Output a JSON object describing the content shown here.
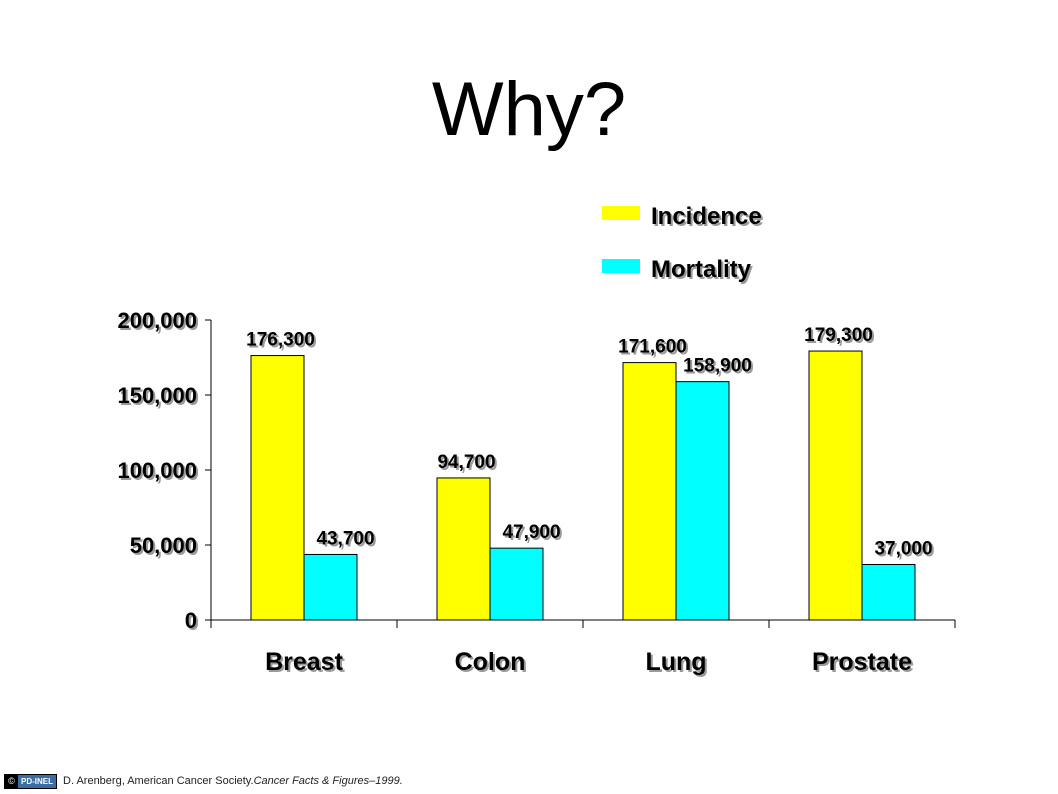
{
  "title": "Why?",
  "chart_data": {
    "type": "bar",
    "categories": [
      "Breast",
      "Colon",
      "Lung",
      "Prostate"
    ],
    "series": [
      {
        "name": "Incidence",
        "values": [
          176300,
          94700,
          171600,
          179300
        ],
        "color": "#ffff00"
      },
      {
        "name": "Mortality",
        "values": [
          43700,
          47900,
          158900,
          37000
        ],
        "color": "#00ffff"
      }
    ],
    "data_labels": {
      "Incidence": [
        "176,300",
        "94,700",
        "171,600",
        "179,300"
      ],
      "Mortality": [
        "43,700",
        "47,900",
        "158,900",
        "37,000"
      ]
    },
    "ylim": [
      0,
      200000
    ],
    "yticks": [
      0,
      50000,
      100000,
      150000,
      200000
    ],
    "ytick_labels": [
      "0",
      "50,000",
      "100,000",
      "150,000",
      "200,000"
    ],
    "xlabel": "",
    "ylabel": "",
    "grid": false,
    "legend_position": "top-right"
  },
  "footer": {
    "badge_cc": "©",
    "badge_pd": "PD-INEL",
    "citation_plain": "D. Arenberg, American Cancer Society. ",
    "citation_italic": "Cancer Facts & Figures–1999."
  }
}
